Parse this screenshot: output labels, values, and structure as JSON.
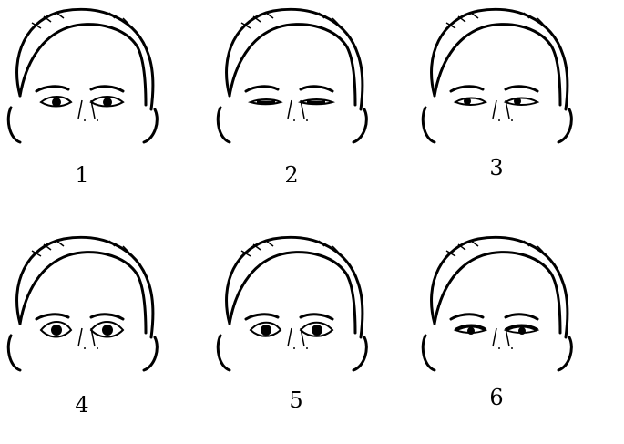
{
  "panels": [
    {
      "id": 1,
      "label": "1",
      "eye_style": "normal"
    },
    {
      "id": 2,
      "label": "2",
      "eye_style": "narrow"
    },
    {
      "id": 3,
      "label": "3",
      "eye_style": "low-lid"
    },
    {
      "id": 4,
      "label": "4",
      "eye_style": "wide-dark"
    },
    {
      "id": 5,
      "label": "5",
      "eye_style": "round"
    },
    {
      "id": 6,
      "label": "6",
      "eye_style": "heavy-lid"
    }
  ]
}
